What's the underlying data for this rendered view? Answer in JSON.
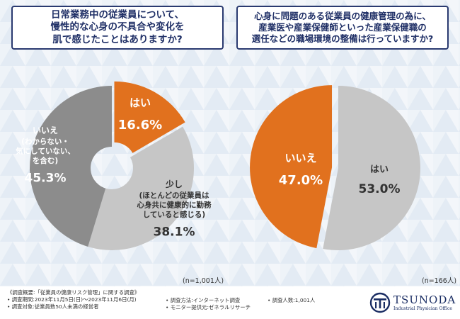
{
  "colors": {
    "orange": "#e1711e",
    "gray_dark": "#8c8c8c",
    "gray_light": "#c6c6c6",
    "navy": "#1f2f66"
  },
  "chart_data": [
    {
      "type": "pie",
      "title": "日常業務中の従業員について、慢性的な心身の不具合や変化を肌で感じたことはありますか?",
      "title_lines": [
        "日常業務中の従業員について、",
        "慢性的な心身の不具合や変化を",
        "肌で感じたことはありますか?"
      ],
      "donut": true,
      "slices": [
        {
          "label": "はい",
          "label_lines": [
            "はい"
          ],
          "value": 16.6,
          "value_text": "16.6%",
          "color": "#e1711e",
          "text_color": "#ffffff"
        },
        {
          "label": "少し(ほとんどの従業員は心身共に健康的に勤務していると感じる)",
          "label_lines": [
            "少し",
            "(ほとんどの従業員は",
            "心身共に健康的に勤務",
            "していると感じる)"
          ],
          "value": 38.1,
          "value_text": "38.1%",
          "color": "#c6c6c6",
          "text_color": "#333333"
        },
        {
          "label": "いいえ(わからない・気にしていない、を含む)",
          "label_lines": [
            "いいえ",
            "(わからない・",
            "気にしていない、",
            "を含む)"
          ],
          "value": 45.3,
          "value_text": "45.3%",
          "color": "#8c8c8c",
          "text_color": "#ffffff"
        }
      ],
      "n_text": "(n=1,001人)"
    },
    {
      "type": "pie",
      "title": "心身に問題のある従業員の健康管理の為に、産業医や産業保健師といった産業保健職の選任などの職場環境の整備は行っていますか?",
      "title_lines": [
        "心身に問題のある従業員の健康管理の為に、",
        "産業医や産業保健師といった産業保健職の",
        "選任などの職場環境の整備は行っていますか?"
      ],
      "donut": false,
      "slices": [
        {
          "label": "はい",
          "label_lines": [
            "はい"
          ],
          "value": 53.0,
          "value_text": "53.0%",
          "color": "#c6c6c6",
          "text_color": "#333333"
        },
        {
          "label": "いいえ",
          "label_lines": [
            "いいえ"
          ],
          "value": 47.0,
          "value_text": "47.0%",
          "color": "#e1711e",
          "text_color": "#ffffff"
        }
      ],
      "n_text": "(n=166人)"
    }
  ],
  "footer": {
    "survey_title": "《調査概要:「従業員の健康リスク管理」に関する調査》",
    "period": "• 調査期間:2023年11月5日(日)〜2023年11月6日(月)",
    "target": "• 調査対象:従業員数50人未満の経営者",
    "method": "• 調査方法:インターネット調査",
    "provider": "• モニター提供元:ゼネラルリサーチ",
    "count": "• 調査人数:1,001人"
  },
  "logo": {
    "name": "TSUNODA",
    "subtitle": "Industrial Physician Office"
  }
}
